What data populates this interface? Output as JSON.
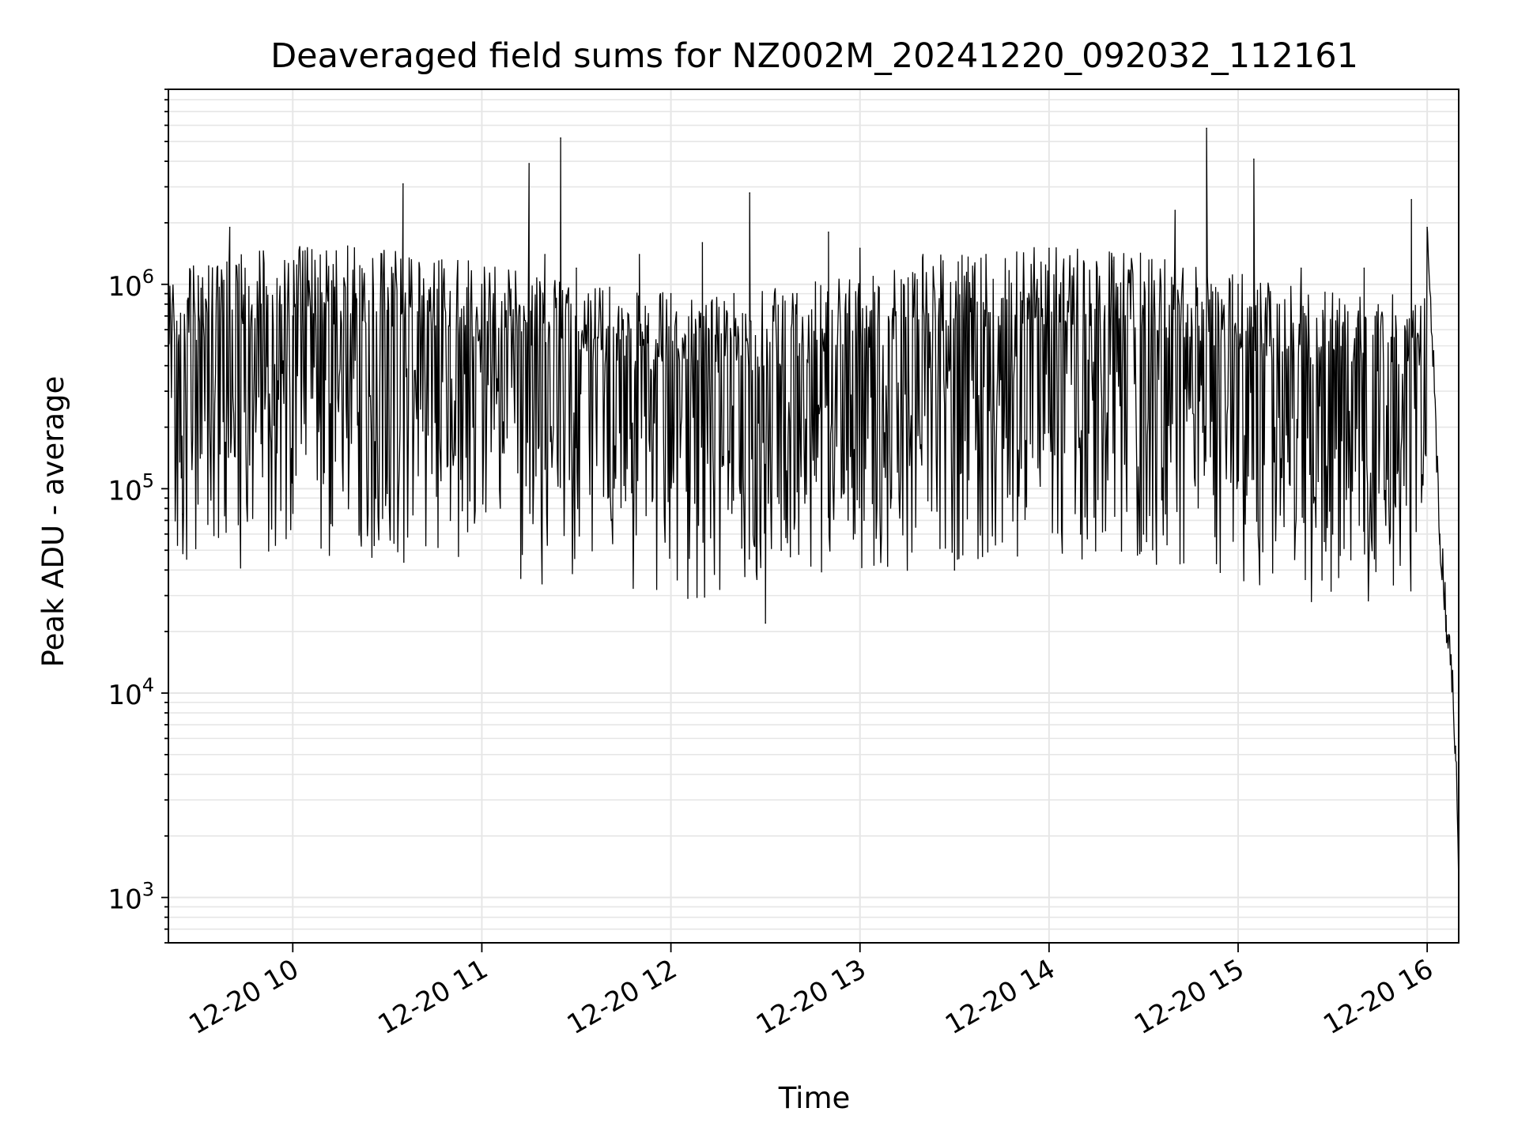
{
  "chart_data": {
    "type": "line",
    "title": "Deaveraged field sums for NZ002M_20241220_092032_112161",
    "xlabel": "Time",
    "ylabel": "Peak ADU - average",
    "yscale": "log",
    "ylim": [
      600,
      9000000
    ],
    "xlim": [
      "2024-12-20 09:20:32",
      "2024-12-20 16:10:00"
    ],
    "grid": true,
    "colors": {
      "line": "#000000",
      "grid": "#e6e6e6",
      "axes": "#000000"
    },
    "x_ticks": [
      {
        "label": "12-20 10",
        "value": "2024-12-20 10:00"
      },
      {
        "label": "12-20 11",
        "value": "2024-12-20 11:00"
      },
      {
        "label": "12-20 12",
        "value": "2024-12-20 12:00"
      },
      {
        "label": "12-20 13",
        "value": "2024-12-20 13:00"
      },
      {
        "label": "12-20 14",
        "value": "2024-12-20 14:00"
      },
      {
        "label": "12-20 15",
        "value": "2024-12-20 15:00"
      },
      {
        "label": "12-20 16",
        "value": "2024-12-20 16:00"
      }
    ],
    "y_ticks": [
      {
        "base": "10",
        "exp": "3",
        "value": 1000
      },
      {
        "base": "10",
        "exp": "4",
        "value": 10000
      },
      {
        "base": "10",
        "exp": "5",
        "value": 100000
      },
      {
        "base": "10",
        "exp": "6",
        "value": 1000000
      }
    ],
    "series": [
      {
        "x": [
          "2024-12-20 09:20:32",
          "2024-12-20 09:25",
          "2024-12-20 09:30",
          "2024-12-20 09:35",
          "2024-12-20 09:40",
          "2024-12-20 09:45",
          "2024-12-20 09:50",
          "2024-12-20 09:55",
          "2024-12-20 10:00",
          "2024-12-20 10:10",
          "2024-12-20 10:20",
          "2024-12-20 10:30",
          "2024-12-20 10:35",
          "2024-12-20 10:40",
          "2024-12-20 10:50",
          "2024-12-20 11:00",
          "2024-12-20 11:10",
          "2024-12-20 11:15",
          "2024-12-20 11:20",
          "2024-12-20 11:25",
          "2024-12-20 11:30",
          "2024-12-20 11:40",
          "2024-12-20 11:50",
          "2024-12-20 12:00",
          "2024-12-20 12:10",
          "2024-12-20 12:20",
          "2024-12-20 12:25",
          "2024-12-20 12:30",
          "2024-12-20 12:35",
          "2024-12-20 12:40",
          "2024-12-20 12:50",
          "2024-12-20 13:00",
          "2024-12-20 13:10",
          "2024-12-20 13:20",
          "2024-12-20 13:30",
          "2024-12-20 13:40",
          "2024-12-20 13:50",
          "2024-12-20 14:00",
          "2024-12-20 14:10",
          "2024-12-20 14:20",
          "2024-12-20 14:30",
          "2024-12-20 14:40",
          "2024-12-20 14:50",
          "2024-12-20 15:00",
          "2024-12-20 15:05",
          "2024-12-20 15:10",
          "2024-12-20 15:20",
          "2024-12-20 15:30",
          "2024-12-20 15:40",
          "2024-12-20 15:50",
          "2024-12-20 15:55",
          "2024-12-20 16:00",
          "2024-12-20 16:02",
          "2024-12-20 16:04",
          "2024-12-20 16:06",
          "2024-12-20 16:08",
          "2024-12-20 16:09",
          "2024-12-20 16:10"
        ],
        "y": [
          500000,
          75000,
          1100000,
          90000,
          1900000,
          600000,
          800000,
          150000,
          700000,
          120000,
          900000,
          95000,
          3100000,
          700000,
          70000,
          1000000,
          600000,
          3900000,
          1400000,
          5200000,
          1200000,
          90000,
          1400000,
          900000,
          1600000,
          900000,
          2800000,
          22000,
          50000,
          900000,
          1800000,
          1500000,
          90000,
          1400000,
          40000,
          1400000,
          70000,
          1500000,
          60000,
          1300000,
          60000,
          2300000,
          5800000,
          1000000,
          4100000,
          500000,
          1200000,
          60000,
          1200000,
          700000,
          2600000,
          1900000,
          420000,
          60000,
          24000,
          12000,
          5500,
          1100
        ]
      }
    ]
  }
}
